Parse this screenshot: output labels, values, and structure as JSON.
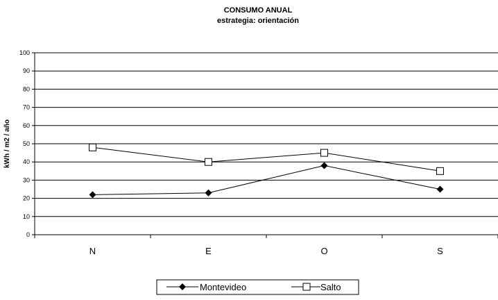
{
  "chart_data": {
    "type": "line",
    "title": "CONSUMO ANUAL",
    "subtitle": "estrategia: orientación",
    "xlabel": "",
    "ylabel": "kWh / m2 / año",
    "categories": [
      "N",
      "E",
      "O",
      "S"
    ],
    "ylim": [
      0,
      100
    ],
    "yticks": [
      0,
      10,
      20,
      30,
      40,
      50,
      60,
      70,
      80,
      90,
      100
    ],
    "grid": true,
    "legend_position": "bottom",
    "series": [
      {
        "name": "Montevideo",
        "values": [
          22,
          23,
          38,
          25
        ],
        "marker": "diamond",
        "color": "#000000"
      },
      {
        "name": "Salto",
        "values": [
          48,
          40,
          45,
          35
        ],
        "marker": "square",
        "color": "#000000"
      }
    ]
  }
}
